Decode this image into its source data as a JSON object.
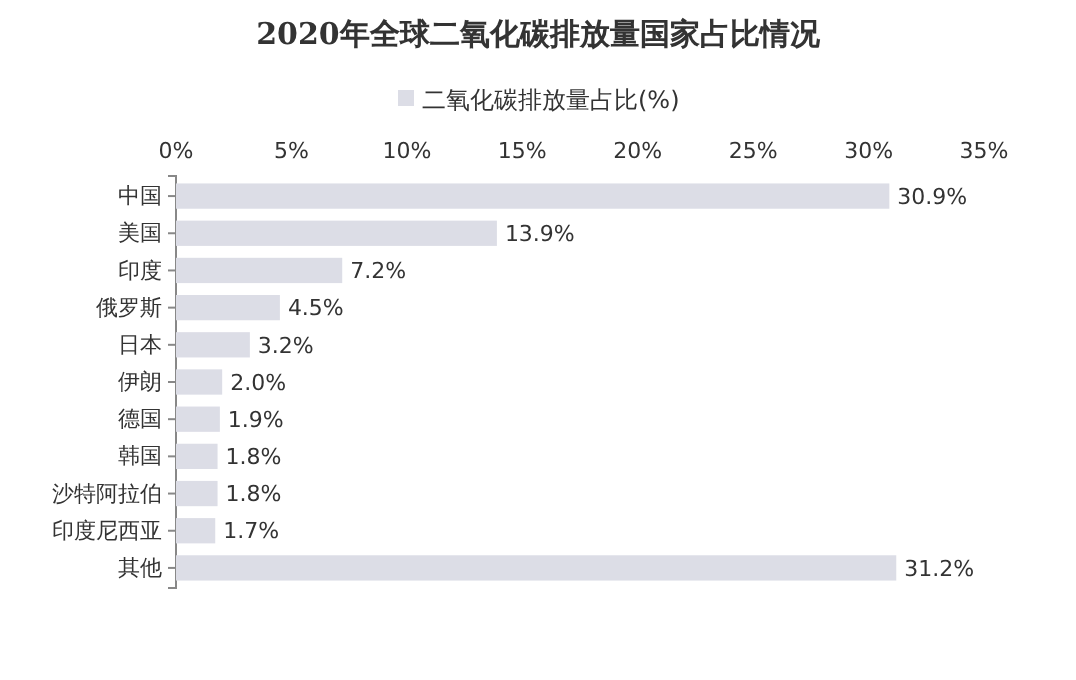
{
  "chart_data": {
    "type": "bar",
    "orientation": "horizontal",
    "title": "2020年全球二氧化碳排放量国家占比情况",
    "categories": [
      "中国",
      "美国",
      "印度",
      "俄罗斯",
      "日本",
      "伊朗",
      "德国",
      "韩国",
      "沙特阿拉伯",
      "印度尼西亚",
      "其他"
    ],
    "series": [
      {
        "name": "二氧化碳排放量占比(%)",
        "color": "#dcdde6",
        "values": [
          30.9,
          13.9,
          7.2,
          4.5,
          3.2,
          2.0,
          1.9,
          1.8,
          1.8,
          1.7,
          31.2
        ],
        "value_labels": [
          "30.9%",
          "13.9%",
          "7.2%",
          "4.5%",
          "3.2%",
          "2.0%",
          "1.9%",
          "1.8%",
          "1.8%",
          "1.7%",
          "31.2%"
        ]
      }
    ],
    "xlim": [
      0,
      35
    ],
    "xticks": [
      {
        "value": 0,
        "label": "0%"
      },
      {
        "value": 5,
        "label": "5%"
      },
      {
        "value": 10,
        "label": "10%"
      },
      {
        "value": 15,
        "label": "15%"
      },
      {
        "value": 20,
        "label": "20%"
      },
      {
        "value": 25,
        "label": "25%"
      },
      {
        "value": 30,
        "label": "30%"
      },
      {
        "value": 35,
        "label": "35%"
      }
    ],
    "legend": "top",
    "grid": false
  }
}
